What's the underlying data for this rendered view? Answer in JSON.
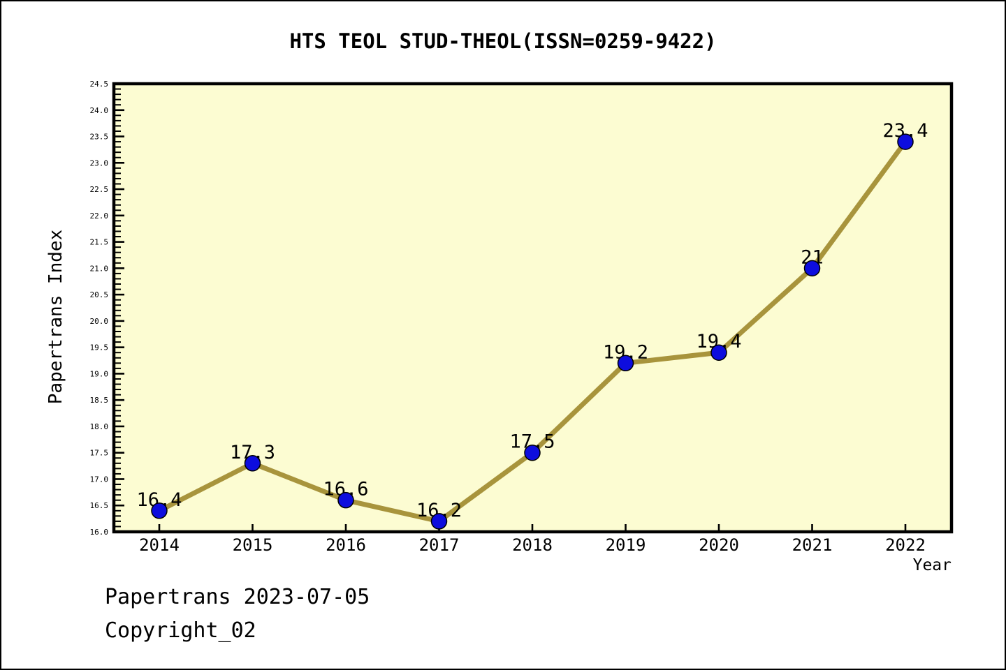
{
  "title": "HTS TEOL STUD-THEOL(ISSN=0259-9422)",
  "footer": {
    "date_line": "Papertrans 2023-07-05",
    "copyright_line": "Copyright_02"
  },
  "chart_data": {
    "type": "line",
    "title": "HTS TEOL STUD-THEOL(ISSN=0259-9422)",
    "xlabel": "Year",
    "ylabel": "Papertrans Index",
    "x": [
      2014,
      2015,
      2016,
      2017,
      2018,
      2019,
      2020,
      2021,
      2022
    ],
    "values": [
      16.4,
      17.3,
      16.6,
      16.2,
      17.5,
      19.2,
      19.4,
      21,
      23.4
    ],
    "point_labels": [
      "16.4",
      "17.3",
      "16.6",
      "16.2",
      "17.5",
      "19.2",
      "19.4",
      "21",
      "23.4"
    ],
    "ylim": [
      16.0,
      24.5
    ],
    "ytick_step": 0.5,
    "ytick_minor_step": 0.1,
    "grid": false,
    "legend": null,
    "colors": {
      "plot_bg": "#FCFCD2",
      "frame": "#000000",
      "line": "#A8943C",
      "marker": "#0D0DDE",
      "marker_edge": "#000000",
      "text": "#000000"
    }
  }
}
